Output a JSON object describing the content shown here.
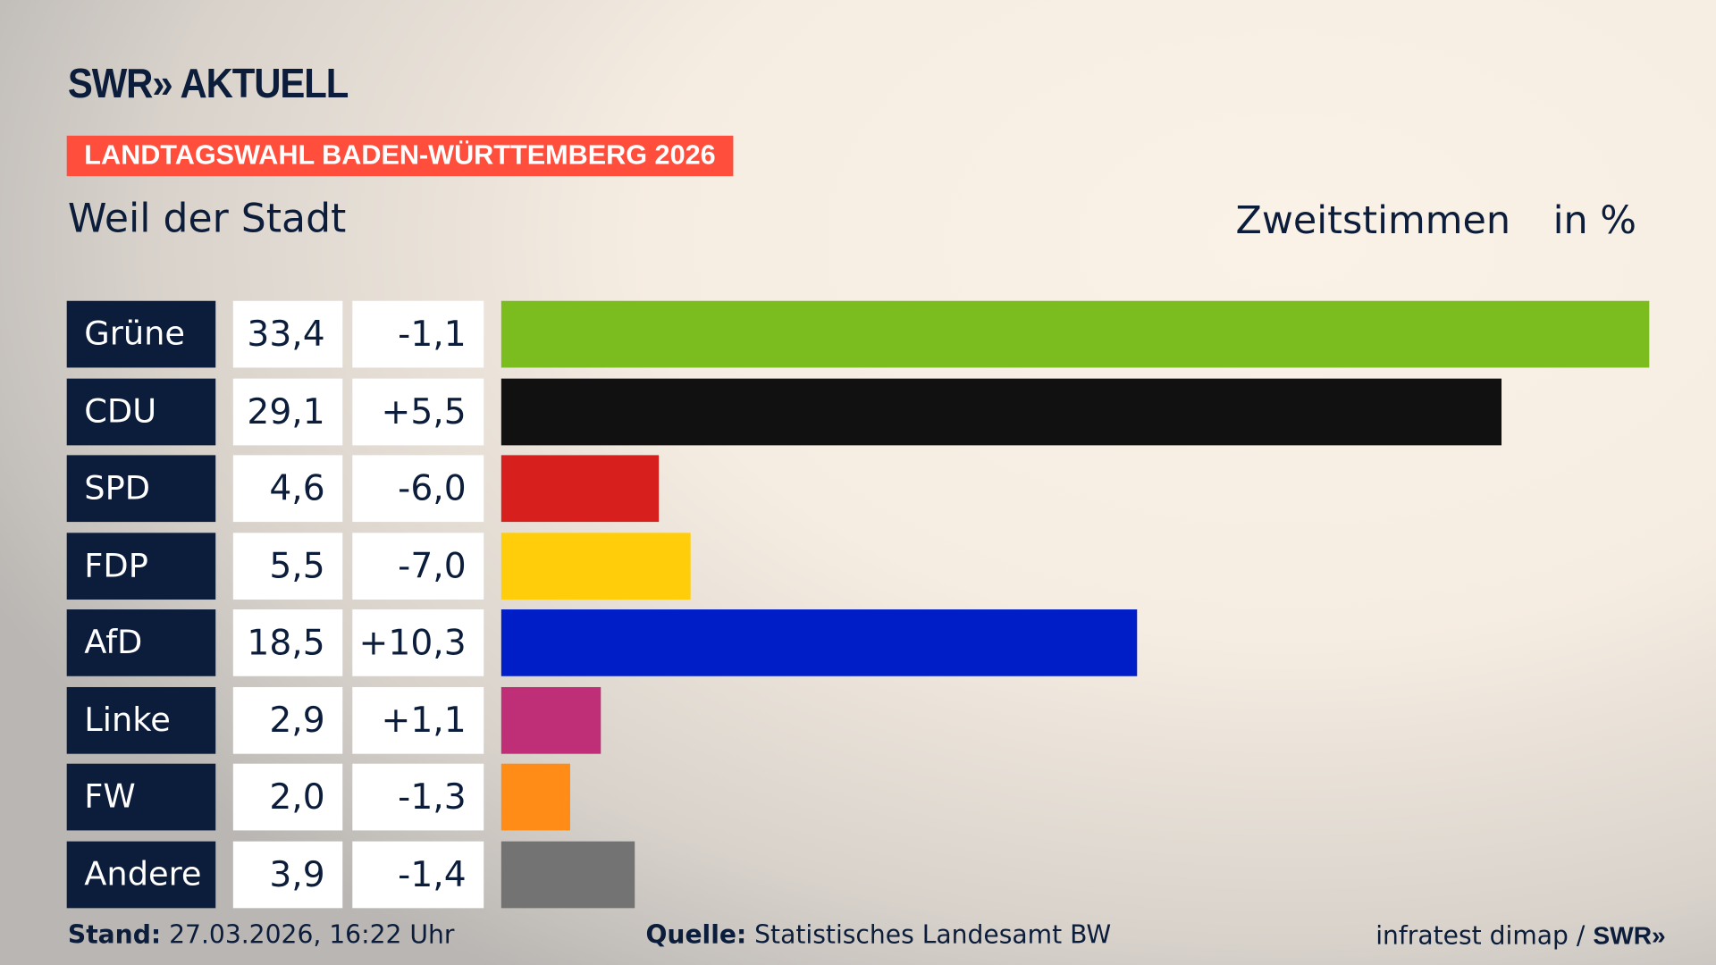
{
  "header": {
    "logo": "SWR» AKTUELL",
    "banner": "LANDTAGSWAHL BADEN-WÜRTTEMBERG 2026",
    "place": "Weil der Stadt",
    "vote_type": "Zweitstimmen",
    "unit": "in %"
  },
  "chart_data": {
    "type": "bar",
    "orientation": "horizontal",
    "categories": [
      "Grüne",
      "CDU",
      "SPD",
      "FDP",
      "AfD",
      "Linke",
      "FW",
      "Andere"
    ],
    "values": [
      33.4,
      29.1,
      4.6,
      5.5,
      18.5,
      2.9,
      2.0,
      3.9
    ],
    "value_labels": [
      "33,4",
      "29,1",
      "4,6",
      "5,5",
      "18,5",
      "2,9",
      "2,0",
      "3,9"
    ],
    "change_labels": [
      "-1,1",
      "+5,5",
      "-6,0",
      "-7,0",
      "+10,3",
      "+1,1",
      "-1,3",
      "-1,4"
    ],
    "changes": [
      -1.1,
      5.5,
      -6.0,
      -7.0,
      10.3,
      1.1,
      -1.3,
      -1.4
    ],
    "colors": [
      "#7bbd1e",
      "#111111",
      "#d71f1d",
      "#ffcd0a",
      "#001ec8",
      "#bf2f78",
      "#ff8c16",
      "#737373"
    ],
    "xlim": [
      0,
      33.4
    ],
    "grid": false
  },
  "footer": {
    "stand_label": "Stand:",
    "stand_value": "27.03.2026, 16:22 Uhr",
    "source_label": "Quelle:",
    "source_value": "Statistisches Landesamt BW",
    "credit": "infratest dimap / ",
    "credit_logo": "SWR»"
  }
}
